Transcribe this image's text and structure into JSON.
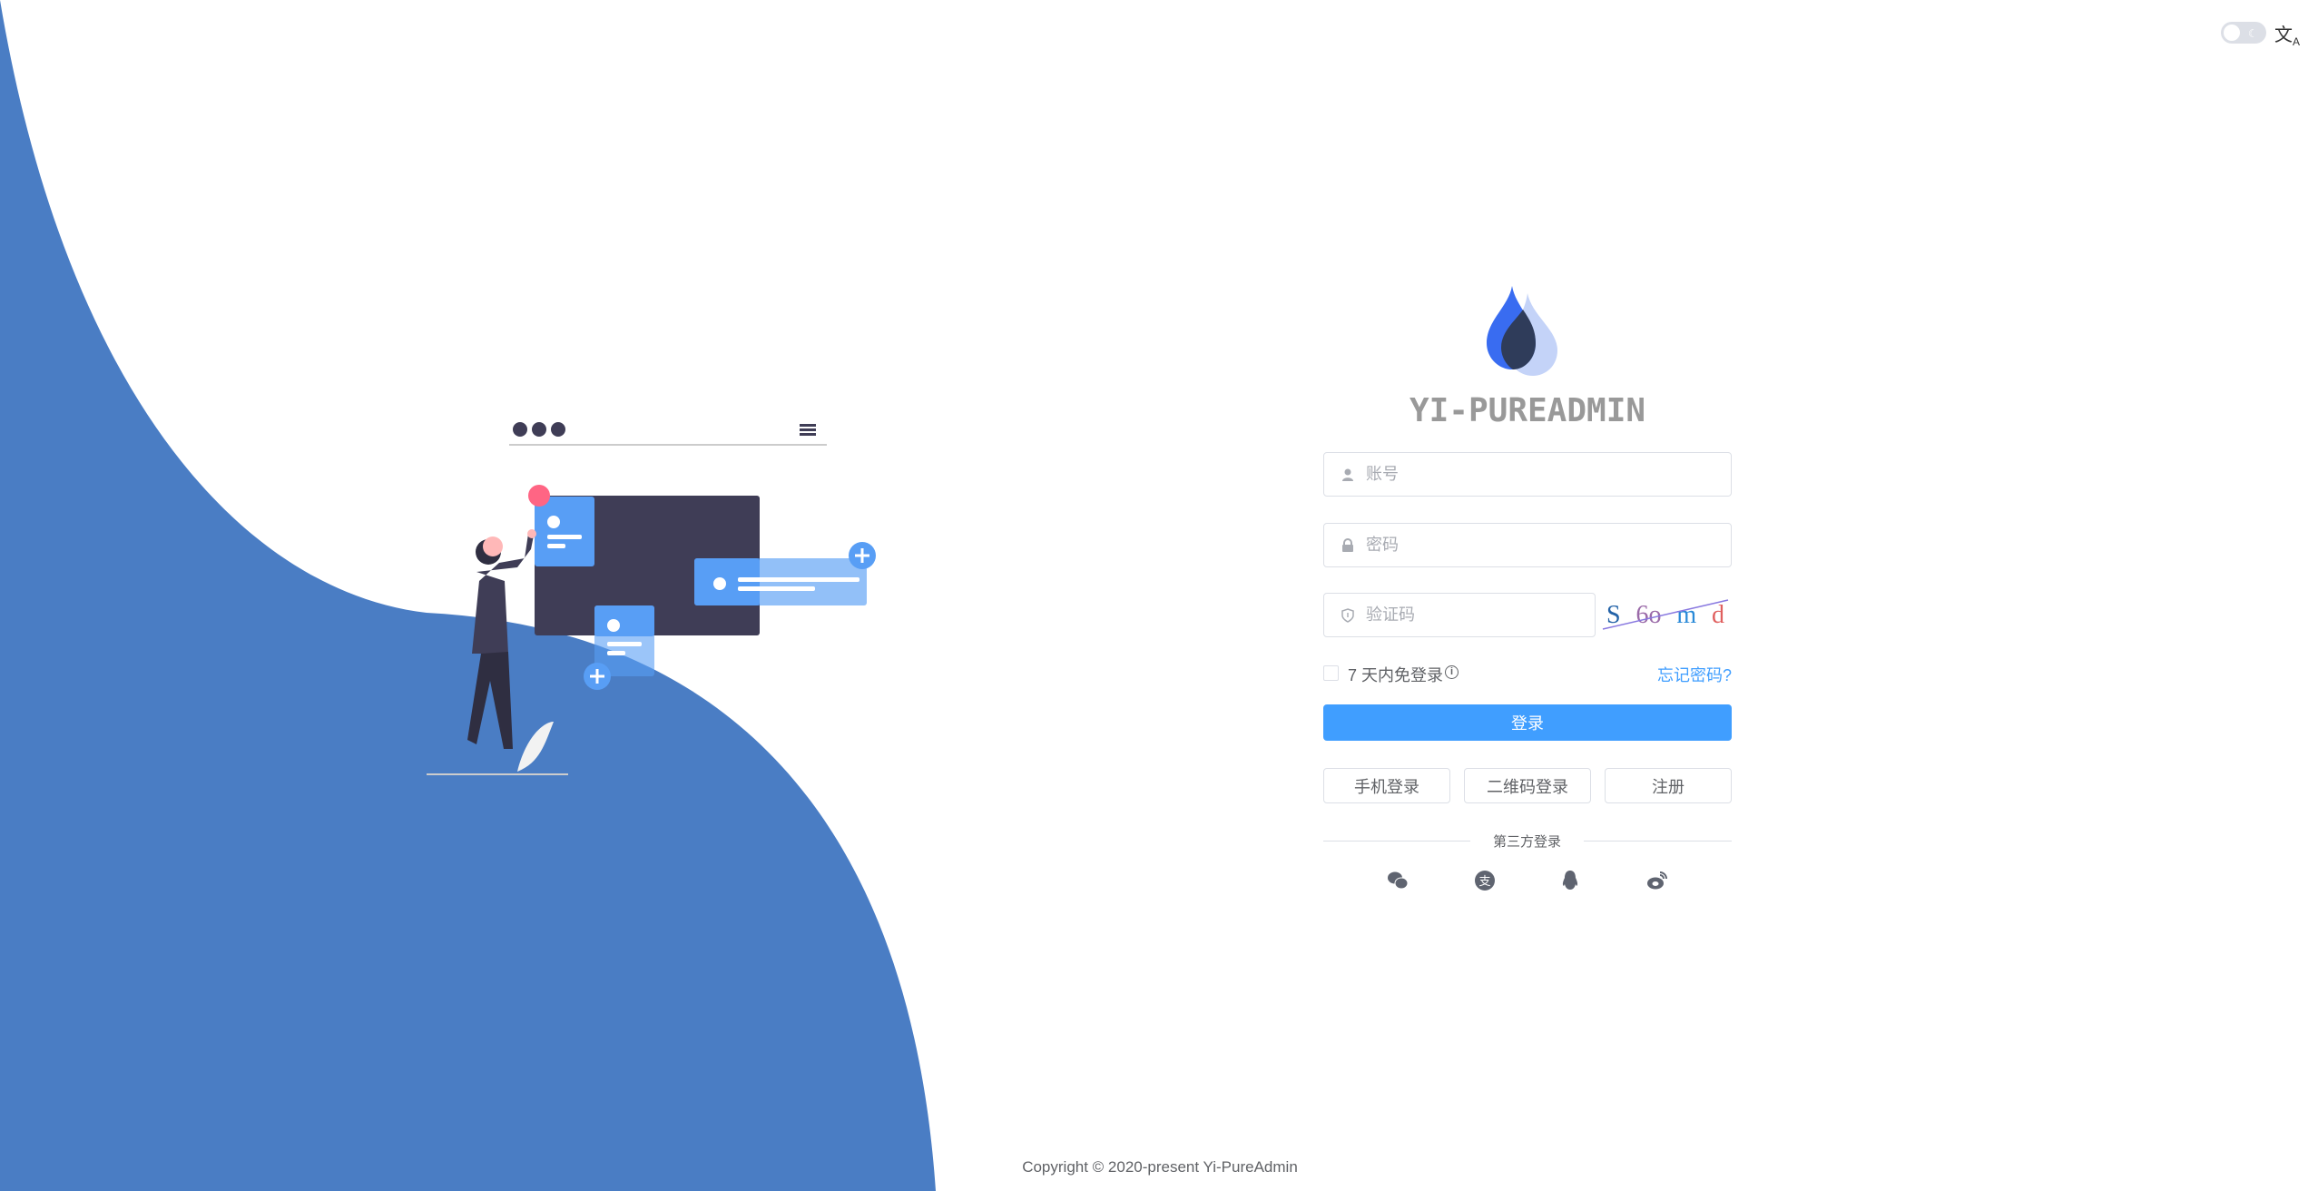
{
  "header": {
    "theme_toggle": "dark-mode-toggle",
    "language_icon": "translate-icon"
  },
  "brand": {
    "title": "YI-PUREADMIN",
    "logo": "water-drop-logo"
  },
  "form": {
    "username": {
      "placeholder": "账号",
      "value": "",
      "icon": "user-icon"
    },
    "password": {
      "placeholder": "密码",
      "value": "",
      "icon": "lock-icon"
    },
    "captcha": {
      "placeholder": "验证码",
      "value": "",
      "icon": "shield-icon",
      "image_text": "S6omd"
    },
    "remember_label": "7 天内免登录",
    "forgot_label": "忘记密码?",
    "login_label": "登录",
    "alt_buttons": [
      "手机登录",
      "二维码登录",
      "注册"
    ],
    "third_party_label": "第三方登录",
    "third_party_icons": [
      "wechat-icon",
      "alipay-icon",
      "qq-icon",
      "weibo-icon"
    ]
  },
  "footer": {
    "copyright": "Copyright © 2020-present Yi-PureAdmin"
  },
  "colors": {
    "primary": "#409eff",
    "wave": "#4a7dc4",
    "dark": "#3f3d56"
  }
}
